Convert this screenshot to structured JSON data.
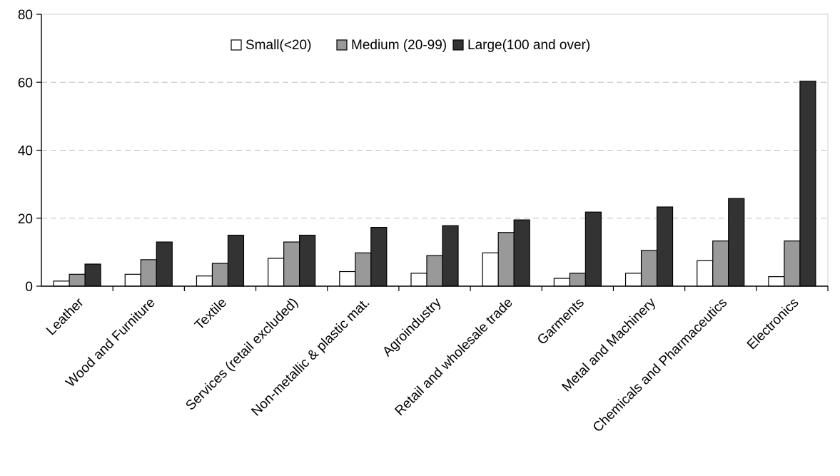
{
  "chart_data": {
    "type": "bar",
    "title": "",
    "xlabel": "",
    "ylabel": "",
    "ylim": [
      0,
      80
    ],
    "yticks": [
      0,
      20,
      40,
      60,
      80
    ],
    "grid": "horizontal dashed",
    "legend_position": "top-center",
    "categories": [
      "Leather",
      "Wood and Furniture",
      "Textile",
      "Services (retail excluded)",
      "Non-metallic & plastic mat.",
      "Agroindustry",
      "Retail and wholesale trade",
      "Garments",
      "Metal and Machinery",
      "Chemicals and Pharmaceutics",
      "Electronics"
    ],
    "series": [
      {
        "name": "Small(<20)",
        "color": "#ffffff",
        "values": [
          1.5,
          3.5,
          3.0,
          8.2,
          4.3,
          3.8,
          9.8,
          2.3,
          3.8,
          7.5,
          2.8
        ]
      },
      {
        "name": "Medium (20-99)",
        "color": "#999999",
        "values": [
          3.5,
          7.8,
          6.7,
          13.0,
          9.8,
          9.0,
          15.8,
          3.8,
          10.5,
          13.3,
          13.3
        ]
      },
      {
        "name": "Large(100 and over)",
        "color": "#333333",
        "values": [
          6.5,
          13.0,
          15.0,
          15.0,
          17.3,
          17.8,
          19.5,
          21.8,
          23.3,
          25.8,
          60.3
        ]
      }
    ]
  }
}
